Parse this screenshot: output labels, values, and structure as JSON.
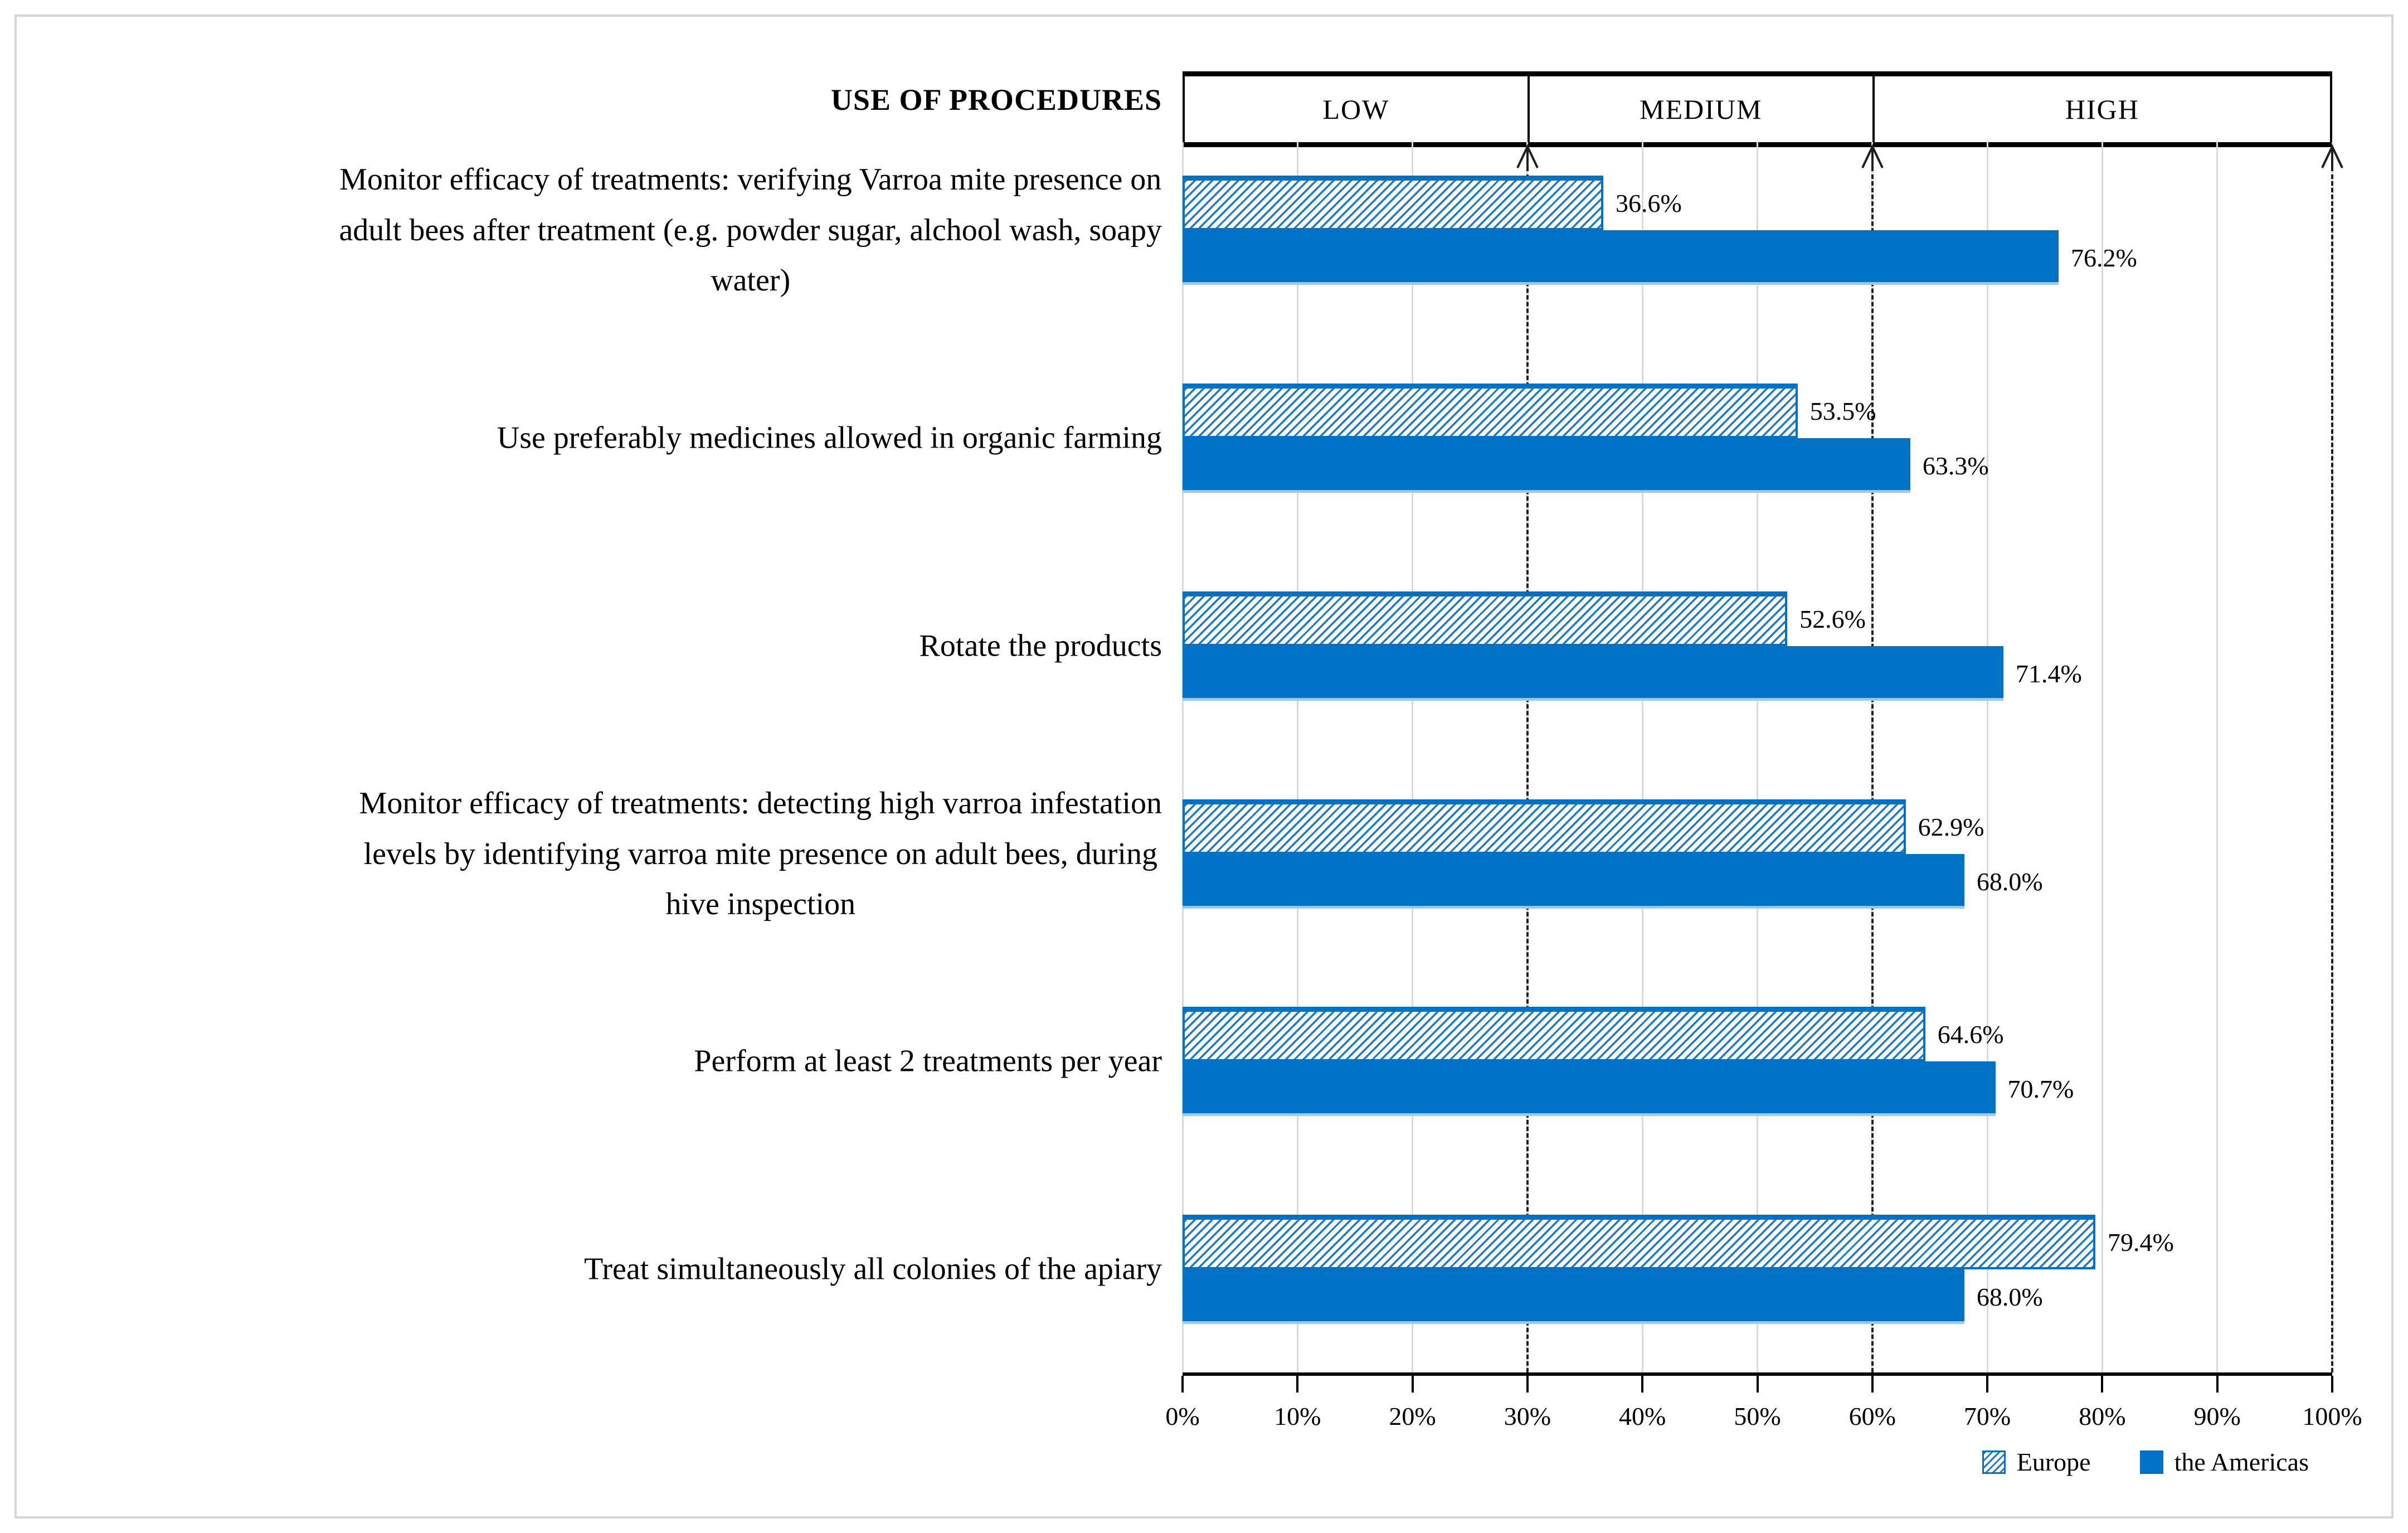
{
  "header": {
    "title": "USE OF PROCEDURES",
    "zones": [
      {
        "label": "LOW",
        "from": 0,
        "to": 30
      },
      {
        "label": "MEDIUM",
        "from": 30,
        "to": 60
      },
      {
        "label": "HIGH",
        "from": 60,
        "to": 100
      }
    ]
  },
  "chart_data": {
    "type": "bar",
    "orientation": "horizontal",
    "title": "USE OF PROCEDURES",
    "categories": [
      "Monitor efficacy of treatments: verifying Varroa mite presence on\nadult bees after treatment (e.g. powder sugar, alchool wash, soapy\nwater)",
      "Use preferably medicines allowed in organic farming",
      "Rotate the products",
      "Monitor efficacy of treatments: detecting high varroa infestation\nlevels by identifying varroa mite presence on adult bees, during\nhive inspection",
      "Perform at least 2 treatments per year",
      "Treat simultaneously all colonies of the apiary"
    ],
    "series": [
      {
        "name": "Europe",
        "style": "hatched",
        "values": [
          36.6,
          53.5,
          52.6,
          62.9,
          64.6,
          79.4
        ],
        "labels": [
          "36.6%",
          "53.5%",
          "52.6%",
          "62.9%",
          "64.6%",
          "79.4%"
        ]
      },
      {
        "name": "the Americas",
        "style": "solid",
        "values": [
          76.2,
          63.3,
          71.4,
          68.0,
          70.7,
          68.0
        ],
        "labels": [
          "76.2%",
          "63.3%",
          "71.4%",
          "68.0%",
          "70.7%",
          "68.0%"
        ]
      }
    ],
    "xlim": [
      0,
      100
    ],
    "x_ticks": [
      "0%",
      "10%",
      "20%",
      "30%",
      "40%",
      "50%",
      "60%",
      "70%",
      "80%",
      "90%",
      "100%"
    ],
    "reference_lines": [
      30,
      60,
      100
    ],
    "gridlines": true,
    "legend_position": "bottom-right",
    "colors": {
      "solid_bar": "#0072C6",
      "hatch_line": "#1E79C8",
      "gridline": "#D9D9D9",
      "reference_line": "#1F1F1F",
      "frame_border": "#D5D5D5"
    }
  },
  "legend": {
    "items": [
      {
        "label": "Europe",
        "style": "hatched"
      },
      {
        "label": "the Americas",
        "style": "solid"
      }
    ]
  }
}
